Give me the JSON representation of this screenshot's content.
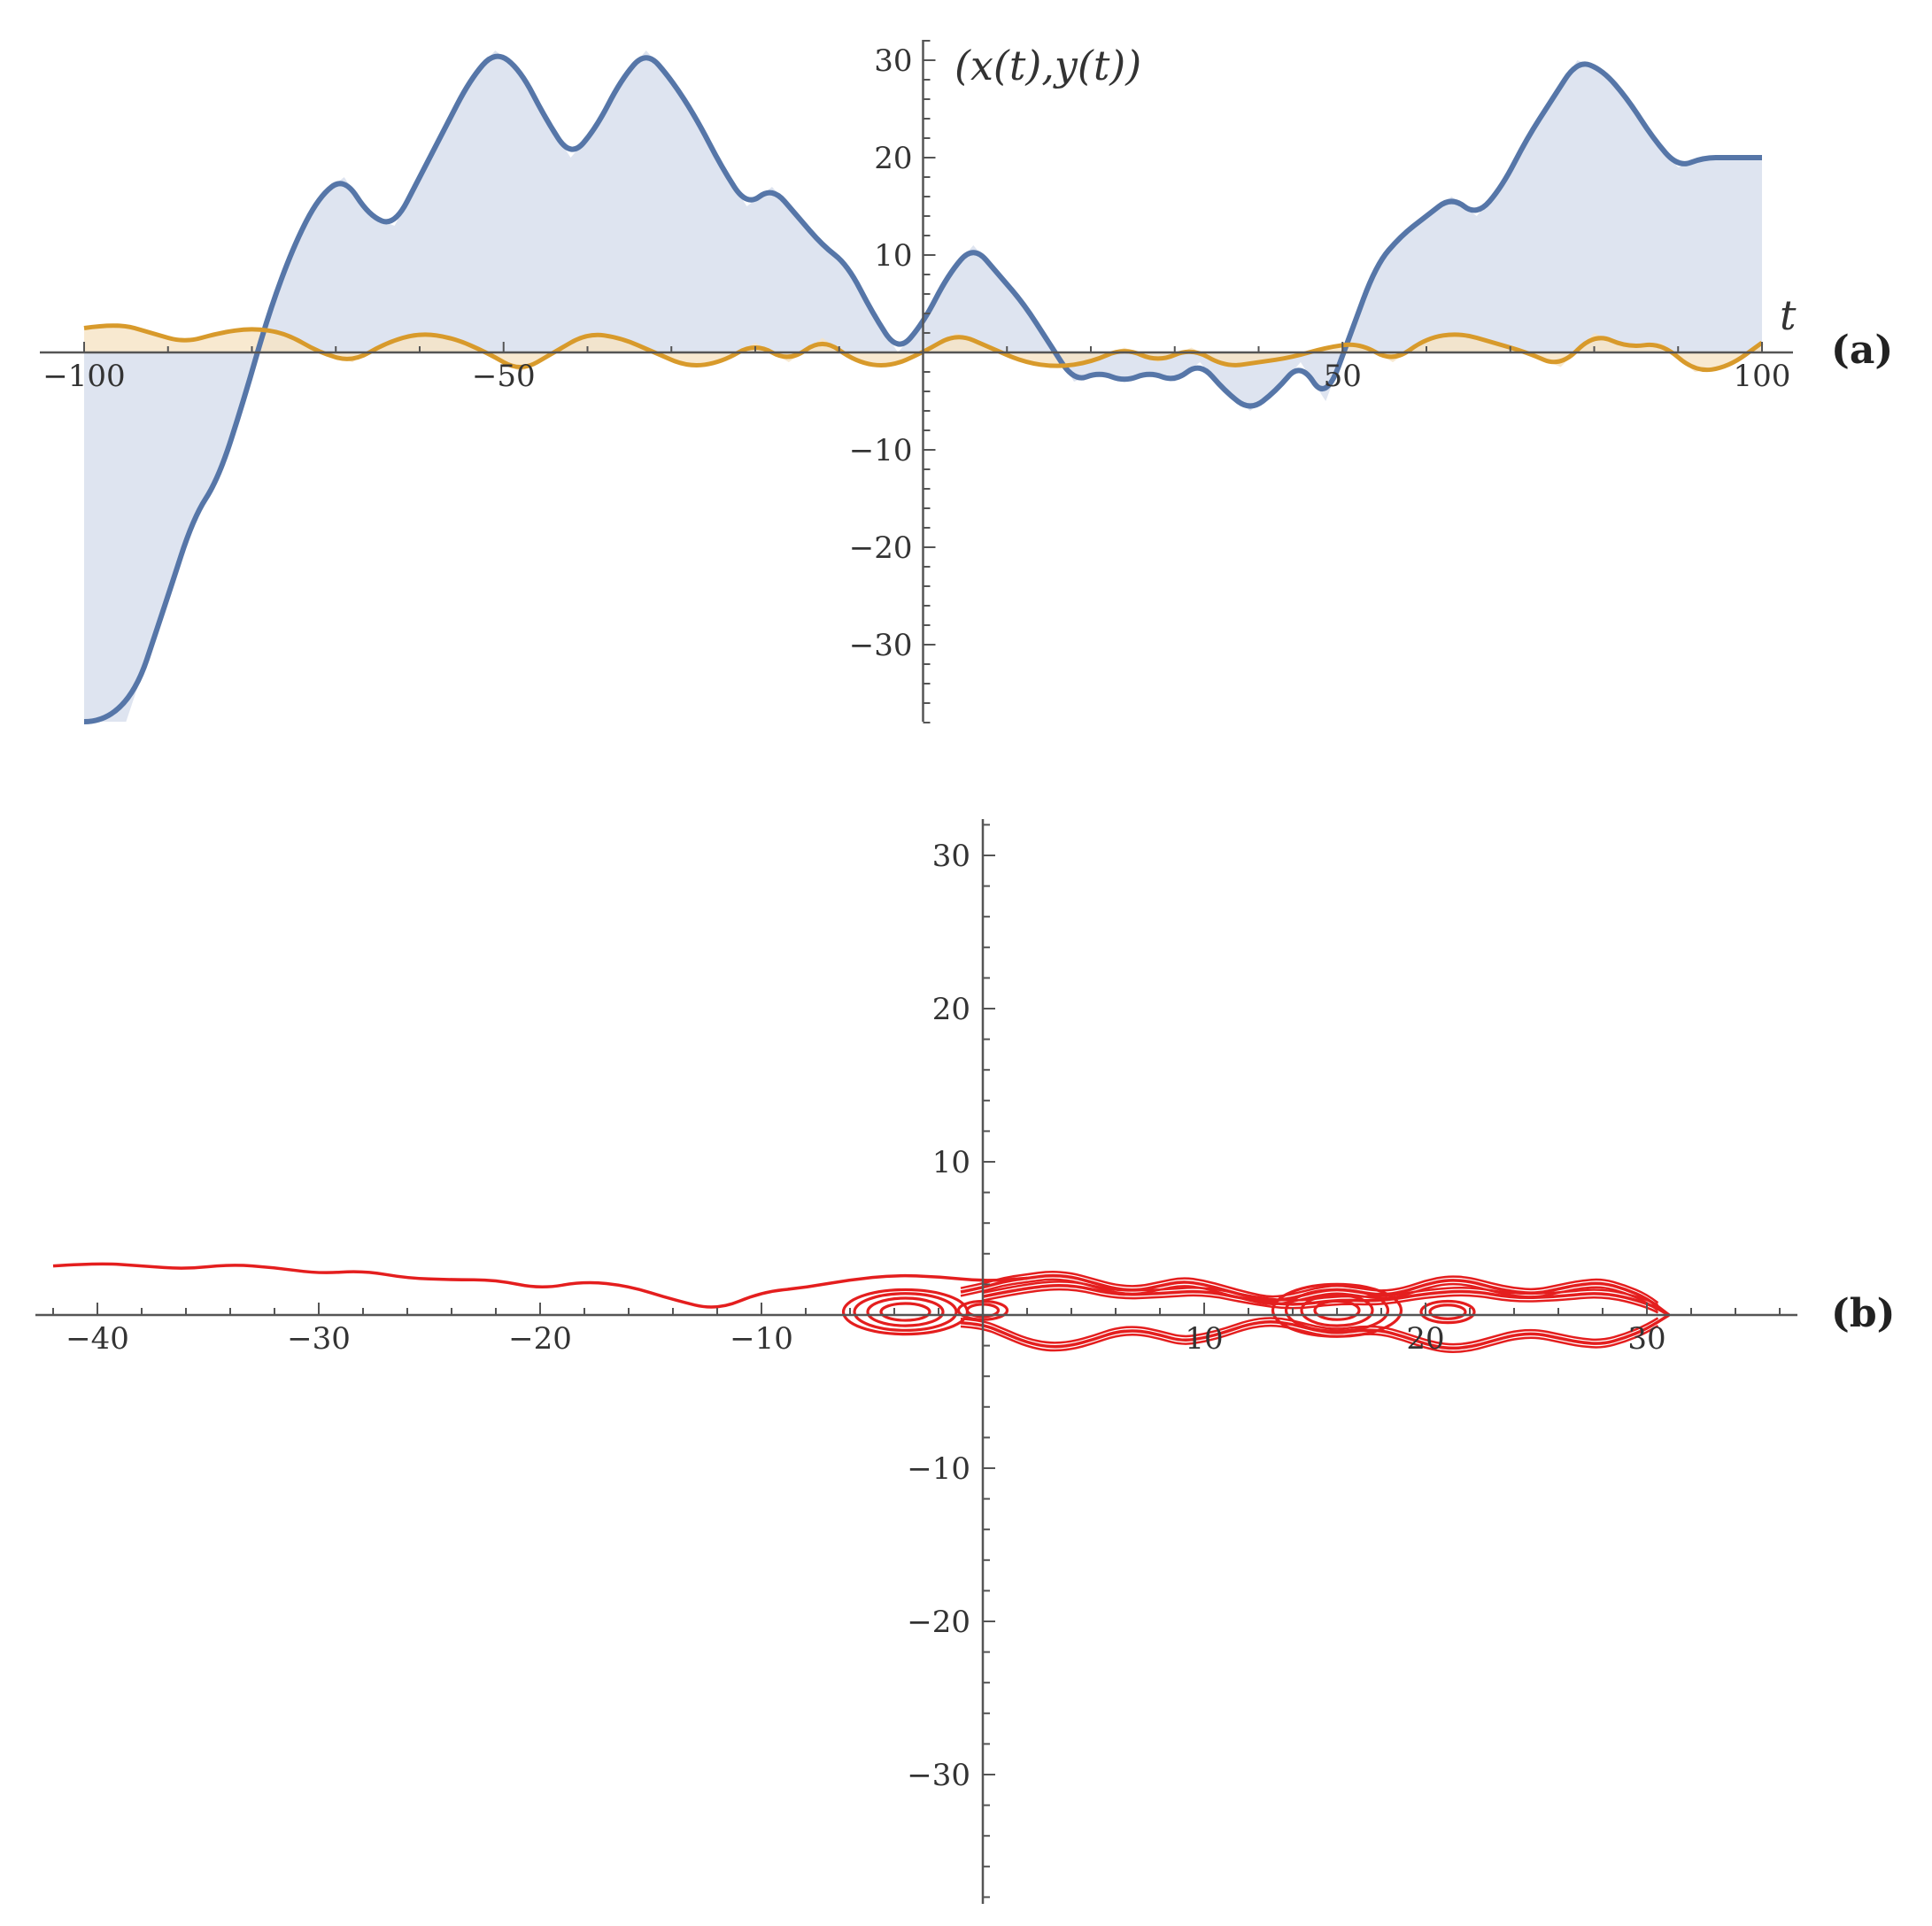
{
  "colors": {
    "x_series": "#5676a8",
    "x_fill": "#dce3ef",
    "y_series": "#d89a2b",
    "y_fill": "#f6e3c4",
    "orbit": "#e41e1e",
    "axis": "#555555"
  },
  "chart_data": [
    {
      "panel": "(a)",
      "type": "area",
      "title": "",
      "xlabel": "t",
      "ylabel": "(x(t),y(t))",
      "xlim": [
        -100,
        100
      ],
      "ylim": [
        -38,
        32
      ],
      "xticks": [
        -100,
        -50,
        50,
        100
      ],
      "yticks": [
        -30,
        -20,
        -10,
        10,
        20,
        30
      ],
      "xtick_labels": [
        "−100",
        "−50",
        "50",
        "100"
      ],
      "ytick_labels": [
        "−30",
        "−20",
        "−10",
        "10",
        "20",
        "30"
      ],
      "grid": false,
      "series": [
        {
          "key": "x",
          "x": [
            -100,
            -95,
            -90,
            -87,
            -84,
            -81,
            -78,
            -75,
            -72,
            -69,
            -66,
            -63,
            -60,
            -57,
            -54,
            -51,
            -48,
            -45,
            -42,
            -39,
            -36,
            -33,
            -30,
            -27,
            -24,
            -21,
            -18,
            -15,
            -12,
            -9,
            -6,
            -3,
            0,
            3,
            6,
            9,
            12,
            15,
            18,
            21,
            24,
            27,
            30,
            33,
            36,
            39,
            42,
            45,
            48,
            51,
            54,
            57,
            60,
            63,
            66,
            69,
            72,
            75,
            78,
            81,
            84,
            87,
            90,
            93,
            96,
            100
          ],
          "y": [
            -45,
            -38,
            -25,
            -17,
            -13,
            -5,
            4,
            11,
            16,
            18,
            14,
            13,
            18,
            23,
            28,
            31,
            29,
            24,
            20,
            23,
            28,
            31,
            28,
            24,
            19,
            15,
            17,
            14,
            11,
            9,
            4,
            0,
            3,
            8,
            11,
            8,
            5,
            1,
            -3,
            -2,
            -3,
            -2,
            -3,
            -1,
            -4,
            -6,
            -4,
            -1,
            -5,
            2,
            9,
            12,
            14,
            16,
            14,
            17,
            22,
            26,
            30,
            29,
            26,
            22,
            19,
            20,
            20,
            20
          ]
        },
        {
          "key": "y",
          "x": [
            -100,
            -96,
            -92,
            -88,
            -84,
            -80,
            -76,
            -72,
            -68,
            -64,
            -60,
            -56,
            -52,
            -48,
            -44,
            -40,
            -36,
            -32,
            -28,
            -24,
            -20,
            -16,
            -12,
            -8,
            -4,
            0,
            4,
            8,
            12,
            16,
            20,
            24,
            28,
            32,
            36,
            40,
            44,
            48,
            52,
            56,
            60,
            64,
            68,
            72,
            76,
            80,
            84,
            88,
            92,
            96,
            100
          ],
          "y": [
            2.5,
            3,
            2,
            1,
            2,
            2.5,
            2,
            0,
            -1,
            1,
            2,
            1.5,
            0,
            -2,
            0,
            2,
            1.5,
            0,
            -1.5,
            -1,
            1,
            -1,
            1.5,
            -1,
            -1.5,
            0,
            2,
            0.5,
            -1,
            -1.5,
            -1,
            0.5,
            -1,
            0.5,
            -1.5,
            -1,
            -0.5,
            0.5,
            1,
            -1,
            1.5,
            2,
            1,
            0,
            -1.5,
            2,
            0.5,
            1,
            -2,
            -1.5,
            1
          ]
        }
      ]
    },
    {
      "panel": "(b)",
      "type": "line",
      "title": "",
      "xlabel": "",
      "ylabel": "",
      "xlim": [
        -42,
        36
      ],
      "ylim": [
        -38,
        32
      ],
      "xticks": [
        -40,
        -30,
        -20,
        -10,
        10,
        20,
        30
      ],
      "yticks": [
        -30,
        -20,
        -10,
        10,
        20,
        30
      ],
      "xtick_labels": [
        "−40",
        "−30",
        "−20",
        "−10",
        "10",
        "20",
        "30"
      ],
      "ytick_labels": [
        "−30",
        "−20",
        "−10",
        "10",
        "20",
        "30"
      ],
      "grid": false,
      "series": [
        {
          "key": "tail",
          "x": [
            -42,
            -40,
            -38,
            -36,
            -34,
            -32,
            -30,
            -28,
            -26,
            -24,
            -22,
            -20,
            -18,
            -16,
            -14,
            -12,
            -10,
            -8,
            -6,
            -4,
            -2,
            0,
            2
          ],
          "y": [
            3.2,
            3.4,
            3.2,
            3.0,
            3.3,
            3.1,
            2.7,
            2.9,
            2.4,
            2.3,
            2.3,
            1.7,
            2.2,
            1.9,
            1.0,
            0.3,
            1.5,
            1.8,
            2.3,
            2.6,
            2.5,
            2.2,
            2.4
          ]
        },
        {
          "key": "orbit-upper",
          "x": [
            -1,
            0,
            1,
            2,
            3,
            4,
            5,
            6,
            7,
            8,
            9,
            10,
            11,
            12,
            13,
            14,
            15,
            16,
            17,
            18,
            19,
            20,
            21,
            22,
            23,
            24,
            25,
            26,
            27,
            28,
            29,
            30,
            31
          ],
          "y": [
            1.5,
            1.8,
            2.2,
            2.4,
            2.6,
            2.5,
            2.1,
            1.7,
            1.6,
            1.9,
            2.2,
            2.0,
            1.6,
            1.2,
            0.9,
            1.1,
            1.5,
            1.7,
            1.5,
            1.3,
            1.5,
            2.0,
            2.3,
            2.2,
            1.8,
            1.5,
            1.4,
            1.7,
            2.0,
            2.1,
            1.7,
            1.1,
            0
          ]
        },
        {
          "key": "orbit-lower",
          "x": [
            -1,
            0,
            1,
            2,
            3,
            4,
            5,
            6,
            7,
            8,
            9,
            10,
            11,
            12,
            13,
            14,
            15,
            16,
            17,
            18,
            19,
            20,
            21,
            22,
            23,
            24,
            25,
            26,
            27,
            28,
            29,
            30,
            31
          ],
          "y": [
            -0.5,
            -0.6,
            -1.2,
            -1.8,
            -2.1,
            -2.0,
            -1.6,
            -1.1,
            -1.0,
            -1.3,
            -1.7,
            -1.5,
            -1.1,
            -0.6,
            -0.4,
            -0.6,
            -1.0,
            -1.2,
            -1.0,
            -1.0,
            -1.4,
            -1.9,
            -2.2,
            -2.1,
            -1.7,
            -1.3,
            -1.2,
            -1.5,
            -1.8,
            -1.9,
            -1.5,
            -0.9,
            0
          ]
        },
        {
          "key": "orbit-mid",
          "x": [
            0,
            2,
            4,
            6,
            8,
            10,
            12,
            14,
            16,
            18,
            20,
            22,
            24,
            26,
            28,
            30,
            31
          ],
          "y": [
            1.2,
            1.8,
            2.0,
            1.3,
            1.4,
            1.6,
            1.0,
            0.6,
            1.0,
            0.9,
            1.4,
            1.6,
            1.1,
            1.2,
            1.5,
            0.8,
            0
          ]
        }
      ],
      "loops": [
        {
          "cx": -3.5,
          "cy": 0.2,
          "rx": [
            1.1,
            1.7,
            2.3,
            2.8
          ],
          "ry": [
            0.55,
            0.9,
            1.2,
            1.45
          ]
        },
        {
          "cx": 16,
          "cy": 0.3,
          "rx": [
            1.0,
            1.6,
            2.3,
            2.9
          ],
          "ry": [
            0.6,
            1.0,
            1.35,
            1.7
          ]
        },
        {
          "cx": 0,
          "cy": 0.3,
          "rx": [
            0.7,
            1.1
          ],
          "ry": [
            0.4,
            0.6
          ]
        },
        {
          "cx": 21,
          "cy": 0.2,
          "rx": [
            0.8,
            1.2
          ],
          "ry": [
            0.45,
            0.7
          ]
        }
      ]
    }
  ]
}
